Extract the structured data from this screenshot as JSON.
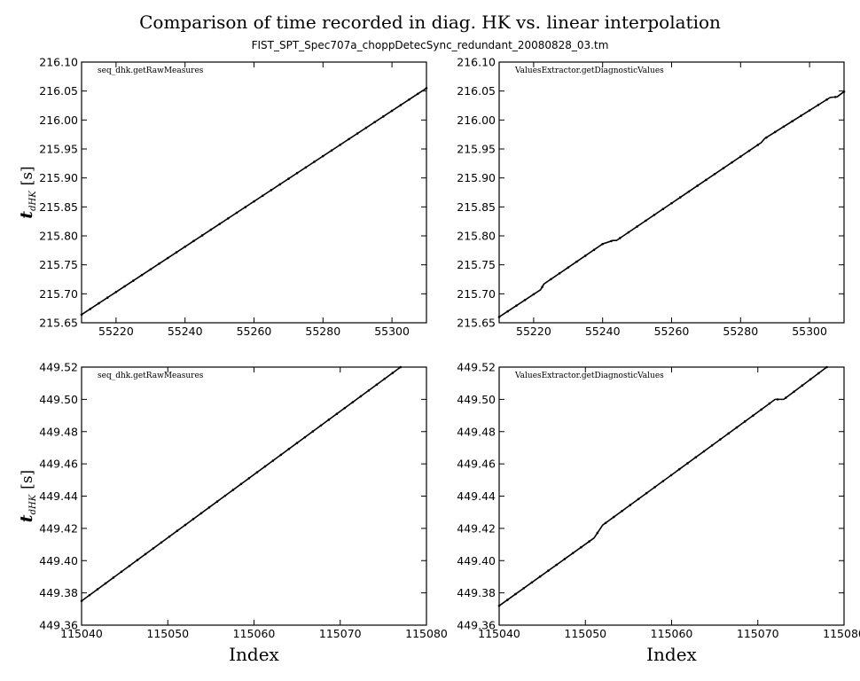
{
  "figure": {
    "title": "Comparison of time recorded in diag. HK vs. linear interpolation",
    "subtitle": "FIST_SPT_Spec707a_choppDetecSync_redundant_20080828_03.tm",
    "xlabel": "Index",
    "ylabel_main": "t",
    "ylabel_sub": "dHK",
    "ylabel_unit": "[s]"
  },
  "chart_data": [
    {
      "type": "line",
      "panel": "top-left",
      "label": "seq_dhk.getRawMeasures",
      "xlim": [
        55210,
        55310
      ],
      "ylim": [
        215.65,
        216.1
      ],
      "xticks": [
        55220,
        55240,
        55260,
        55280,
        55300
      ],
      "yticks": [
        215.65,
        215.7,
        215.75,
        215.8,
        215.85,
        215.9,
        215.95,
        216.0,
        216.05,
        216.1
      ],
      "ytick_decimals": 2,
      "x": [
        55210,
        55310
      ],
      "y": [
        215.664,
        216.055
      ],
      "show_xlabel": false,
      "show_ylabel": true
    },
    {
      "type": "line",
      "panel": "top-right",
      "label": "ValuesExtractor.getDiagnosticValues",
      "xlim": [
        55210,
        55310
      ],
      "ylim": [
        215.65,
        216.1
      ],
      "xticks": [
        55220,
        55240,
        55260,
        55280,
        55300
      ],
      "yticks": [
        215.65,
        215.7,
        215.75,
        215.8,
        215.85,
        215.9,
        215.95,
        216.0,
        216.05,
        216.1
      ],
      "ytick_decimals": 2,
      "x": [
        55210,
        55222,
        55223,
        55240,
        55243,
        55244,
        55286,
        55287,
        55306,
        55308,
        55310
      ],
      "y": [
        215.66,
        215.707,
        215.717,
        215.786,
        215.792,
        215.792,
        215.961,
        215.968,
        216.039,
        216.04,
        216.049
      ],
      "show_xlabel": false,
      "show_ylabel": false
    },
    {
      "type": "line",
      "panel": "bottom-left",
      "label": "seq_dhk.getRawMeasures",
      "xlim": [
        115040,
        115080
      ],
      "ylim": [
        449.36,
        449.52
      ],
      "xticks": [
        115040,
        115050,
        115060,
        115070,
        115080
      ],
      "yticks": [
        449.36,
        449.38,
        449.4,
        449.42,
        449.44,
        449.46,
        449.48,
        449.5,
        449.52
      ],
      "ytick_decimals": 2,
      "x": [
        115040,
        115077
      ],
      "y": [
        449.375,
        449.52
      ],
      "show_xlabel": true,
      "show_ylabel": true
    },
    {
      "type": "line",
      "panel": "bottom-right",
      "label": "ValuesExtractor.getDiagnosticValues",
      "xlim": [
        115040,
        115080
      ],
      "ylim": [
        449.36,
        449.52
      ],
      "xticks": [
        115040,
        115050,
        115060,
        115070,
        115080
      ],
      "yticks": [
        449.36,
        449.38,
        449.4,
        449.42,
        449.44,
        449.46,
        449.48,
        449.5,
        449.52
      ],
      "ytick_decimals": 2,
      "x": [
        115040,
        115051,
        115052,
        115071,
        115072,
        115073,
        115078
      ],
      "y": [
        449.372,
        449.414,
        449.422,
        449.496,
        449.5,
        449.5,
        449.52
      ],
      "show_xlabel": true,
      "show_ylabel": false
    }
  ]
}
